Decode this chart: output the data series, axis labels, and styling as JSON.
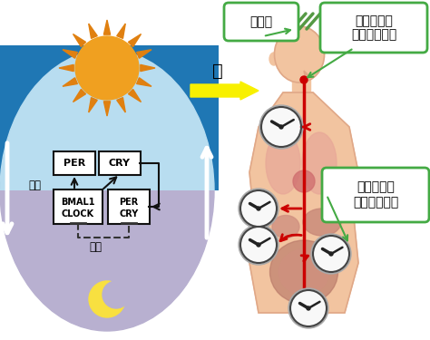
{
  "bg_color": "#ffffff",
  "circle_day_color": "#b8ddf0",
  "circle_night_color": "#b8b0d0",
  "sun_color": "#f0a020",
  "sun_ray_color": "#e08010",
  "moon_color": "#f8e040",
  "arrow_light_color": "#f8f000",
  "box_fill": "#ffffff",
  "box_edge": "#111111",
  "arrow_white": "#ffffff",
  "arrow_red": "#cc0000",
  "arrow_black": "#111111",
  "dashed_color": "#333333",
  "body_skin": "#f2c4a0",
  "body_outline": "#e0a888",
  "organ_lung": "#e8a898",
  "organ_liver": "#c88878",
  "organ_intestine": "#b87868",
  "organ_stomach": "#d09080",
  "organ_kidney": "#c08878",
  "bubble_fill": "#ffffff",
  "bubble_edge": "#44aa44",
  "clock_face": "#f8f8f8",
  "clock_edge": "#444444",
  "clock_hand": "#222222",
  "label_hikari": "光",
  "label_shinkei": "視神経",
  "label_scn1": "視交叉上核",
  "label_scn2": "（中枢時計）",
  "label_saibo1": "全身の細脹",
  "label_saibo2": "（末梢時計）",
  "label_kassei": "活性",
  "label_yokusei": "抑制",
  "label_per": "PER",
  "label_cry": "CRY",
  "label_bmal1": "BMAL1",
  "label_clock_gene": "CLOCK"
}
